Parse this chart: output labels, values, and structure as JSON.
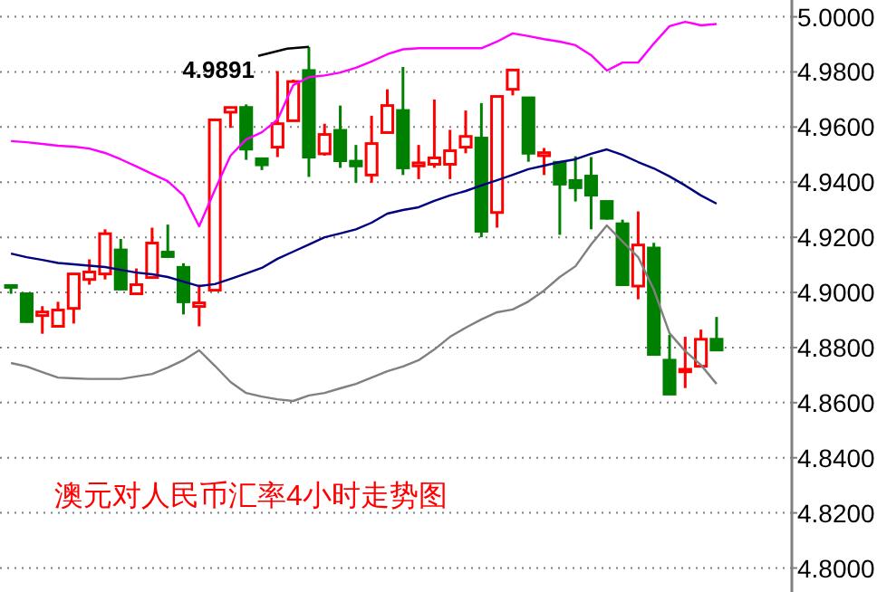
{
  "chart_data": {
    "type": "candlestick",
    "title": "澳元对人民币汇率4小时走势图",
    "categories": [
      null,
      null,
      null,
      null,
      null,
      null,
      null,
      null,
      null,
      null,
      null,
      null,
      null,
      null,
      null,
      null,
      null,
      null,
      null,
      null,
      null,
      null,
      null,
      null,
      null,
      null,
      null,
      null,
      null,
      null,
      null,
      null,
      null,
      null,
      null,
      null,
      null,
      null,
      null,
      null,
      null,
      null,
      null,
      null,
      null,
      null
    ],
    "ohlc": [
      [
        4.9025,
        4.9025,
        4.8995,
        4.902
      ],
      [
        4.8995,
        4.8995,
        4.889,
        4.8894
      ],
      [
        4.8916,
        4.895,
        4.885,
        4.8929
      ],
      [
        4.8877,
        4.8966,
        4.8877,
        4.8936
      ],
      [
        4.8942,
        4.9067,
        4.8887,
        4.9067
      ],
      [
        4.9047,
        4.912,
        4.9028,
        4.9074
      ],
      [
        4.9067,
        4.9229,
        4.9047,
        4.9213
      ],
      [
        4.9154,
        4.9194,
        4.9012,
        4.9012
      ],
      [
        4.8995,
        4.9087,
        4.8995,
        4.9028
      ],
      [
        4.9054,
        4.9235,
        4.9054,
        4.9179
      ],
      [
        4.9146,
        4.9246,
        4.913,
        4.913
      ],
      [
        4.9091,
        4.9106,
        4.892,
        4.8966
      ],
      [
        4.8949,
        4.9028,
        4.8877,
        4.8962
      ],
      [
        4.9008,
        4.9626,
        4.9008,
        4.9626
      ],
      [
        4.9654,
        4.9671,
        4.9597,
        4.9671
      ],
      [
        4.9671,
        4.9682,
        4.9481,
        4.952
      ],
      [
        4.9485,
        4.9485,
        4.9444,
        4.9463
      ],
      [
        4.9527,
        4.9803,
        4.9491,
        4.9612
      ],
      [
        4.9623,
        4.9772,
        4.9623,
        4.9765
      ],
      [
        4.9805,
        4.9891,
        4.9419,
        4.9491
      ],
      [
        4.9503,
        4.9612,
        4.9496,
        4.9573
      ],
      [
        4.9588,
        4.9678,
        4.9452,
        4.9478
      ],
      [
        4.9476,
        4.9535,
        4.9398,
        4.9459
      ],
      [
        4.9426,
        4.9641,
        4.9398,
        4.954
      ],
      [
        4.958,
        4.9737,
        4.958,
        4.9678
      ],
      [
        4.966,
        4.9818,
        4.9426,
        4.9452
      ],
      [
        4.9459,
        4.9535,
        4.9411,
        4.947
      ],
      [
        4.9465,
        4.97,
        4.9452,
        4.9488
      ],
      [
        4.9465,
        4.959,
        4.9411,
        4.9514
      ],
      [
        4.9527,
        4.966,
        4.9505,
        4.9566
      ],
      [
        4.956,
        4.9687,
        4.92,
        4.9222
      ],
      [
        4.929,
        4.9711,
        4.9235,
        4.9711
      ],
      [
        4.9737,
        4.9807,
        4.9715,
        4.9807
      ],
      [
        4.9706,
        4.9706,
        4.9474,
        4.9505
      ],
      [
        4.9496,
        4.9524,
        4.9426,
        4.9507
      ],
      [
        4.9472,
        4.9472,
        4.9209,
        4.9393
      ],
      [
        4.9406,
        4.9494,
        4.933,
        4.938
      ],
      [
        4.9422,
        4.9491,
        4.9229,
        4.9353
      ],
      [
        4.933,
        4.933,
        4.9264,
        4.9269
      ],
      [
        4.9249,
        4.9264,
        4.9028,
        4.9028
      ],
      [
        4.9023,
        4.9294,
        4.8975,
        4.9172
      ],
      [
        4.9161,
        4.918,
        4.8775,
        4.8775
      ],
      [
        4.8754,
        4.8846,
        4.8631,
        4.8631
      ],
      [
        4.8712,
        4.8839,
        4.8653,
        4.8721
      ],
      [
        4.8732,
        4.8865,
        4.8732,
        4.883
      ],
      [
        4.883,
        4.8911,
        4.8791,
        4.8791
      ]
    ],
    "colors": [
      "#008000",
      "#008000",
      "#ff0000",
      "#ff0000",
      "#ff0000",
      "#ff0000",
      "#ff0000",
      "#008000",
      "#ff0000",
      "#ff0000",
      "#008000",
      "#008000",
      "#ff0000",
      "#ff0000",
      "#ff0000",
      "#008000",
      "#008000",
      "#ff0000",
      "#ff0000",
      "#008000",
      "#ff0000",
      "#008000",
      "#008000",
      "#ff0000",
      "#ff0000",
      "#008000",
      "#ff0000",
      "#ff0000",
      "#ff0000",
      "#ff0000",
      "#008000",
      "#ff0000",
      "#ff0000",
      "#008000",
      "#ff0000",
      "#008000",
      "#008000",
      "#008000",
      "#008000",
      "#008000",
      "#ff0000",
      "#008000",
      "#008000",
      "#ff0000",
      "#ff0000",
      "#008000"
    ],
    "series": [
      {
        "type": "line",
        "color": "#ff00ff",
        "values": [
          4.9549,
          4.9545,
          4.9539,
          4.9532,
          4.9529,
          4.9522,
          4.9506,
          4.9483,
          4.9457,
          4.943,
          4.9404,
          4.9352,
          4.924,
          4.9371,
          4.9496,
          4.9555,
          4.9581,
          4.9627,
          4.9752,
          4.9781,
          4.9787,
          4.9798,
          4.9815,
          4.9838,
          4.9864,
          4.9882,
          4.9886,
          4.9886,
          4.9886,
          4.9886,
          4.9886,
          4.991,
          4.994,
          4.993,
          4.9919,
          4.991,
          4.9897,
          4.9861,
          4.9805,
          4.9834,
          4.9834,
          4.9903,
          4.9966,
          4.9982,
          4.9969,
          4.9974
        ]
      },
      {
        "type": "line",
        "color": "#000080",
        "values": [
          4.9141,
          4.9128,
          4.9118,
          4.9107,
          4.9102,
          4.9097,
          4.9092,
          4.9082,
          4.9072,
          4.9066,
          4.9056,
          4.9039,
          4.9023,
          4.903,
          4.9049,
          4.9069,
          4.9089,
          4.9122,
          4.9148,
          4.9174,
          4.92,
          4.9214,
          4.9229,
          4.9253,
          4.9286,
          4.9299,
          4.9309,
          4.9332,
          4.9352,
          4.9368,
          4.9388,
          4.9407,
          4.9427,
          4.9447,
          4.946,
          4.9473,
          4.9483,
          4.9503,
          4.9519,
          4.9499,
          4.9473,
          4.945,
          4.9421,
          4.9388,
          4.9352,
          4.9322
        ]
      },
      {
        "type": "line",
        "color": "#808080",
        "values": [
          4.8744,
          4.8731,
          4.8711,
          4.8691,
          4.8688,
          4.8686,
          4.8686,
          4.8686,
          4.8695,
          4.8704,
          4.8727,
          4.8754,
          4.879,
          4.8734,
          4.8675,
          4.8635,
          4.8622,
          4.8612,
          4.8606,
          4.8626,
          4.8635,
          4.8652,
          4.8668,
          4.8691,
          4.8714,
          4.8731,
          4.8754,
          4.8793,
          4.8839,
          4.8872,
          4.8902,
          4.8928,
          4.8938,
          4.8967,
          4.9007,
          4.9056,
          4.9095,
          4.9174,
          4.9243,
          4.9185,
          4.9128,
          4.901,
          4.8852,
          4.8787,
          4.8737,
          4.8668
        ]
      }
    ],
    "annotations": [
      "4.9891"
    ],
    "ylim": [
      4.7913,
      5.0061
    ],
    "yticks": [
      {
        "value": 4.8,
        "label": "4.8000"
      },
      {
        "value": 4.82,
        "label": "4.8200"
      },
      {
        "value": 4.84,
        "label": "4.8400"
      },
      {
        "value": 4.86,
        "label": "4.8600"
      },
      {
        "value": 4.88,
        "label": "4.8800"
      },
      {
        "value": 4.9,
        "label": "4.9000"
      },
      {
        "value": 4.92,
        "label": "4.9200"
      },
      {
        "value": 4.94,
        "label": "4.9400"
      },
      {
        "value": 4.96,
        "label": "4.9600"
      },
      {
        "value": 4.98,
        "label": "4.9800"
      },
      {
        "value": 5.0,
        "label": "5.0000"
      }
    ],
    "grid": "y",
    "tick_labels": "y"
  }
}
